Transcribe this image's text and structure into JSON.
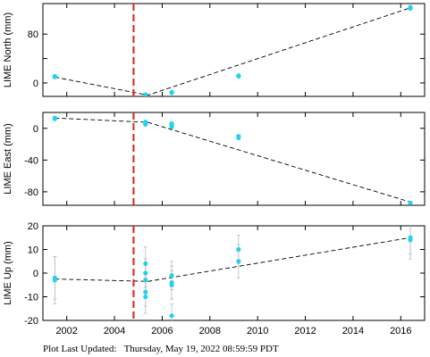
{
  "footer": {
    "label": "Plot Last Updated:",
    "timestamp": "Thursday, May 19, 2022 08:59:59 PDT"
  },
  "colors": {
    "points": "#22d3ee",
    "errorbars": "#bbbbbb",
    "trend": "#000000",
    "event_line": "#e0201a"
  },
  "chart_data": [
    {
      "type": "scatter",
      "ylabel": "LIME North (mm)",
      "xlim": [
        2001.0,
        2017.0
      ],
      "ylim": [
        -22,
        130
      ],
      "yticks": [
        0,
        40,
        80
      ],
      "ytick_labels": [
        "0",
        "",
        "80"
      ],
      "xticks": [
        2002,
        2004,
        2006,
        2008,
        2010,
        2012,
        2014,
        2016
      ],
      "xtick_labels": [
        "",
        "",
        "",
        "",
        "",
        "",
        "",
        ""
      ],
      "event_x": 2004.8,
      "trend": [
        [
          2001.5,
          9.5
        ],
        [
          2005.4,
          -20
        ],
        [
          2016.4,
          123
        ]
      ],
      "points": [
        {
          "x": 2001.5,
          "y": 10
        },
        {
          "x": 2001.5,
          "y": 11
        },
        {
          "x": 2005.3,
          "y": -19
        },
        {
          "x": 2005.3,
          "y": -20
        },
        {
          "x": 2006.4,
          "y": -16
        },
        {
          "x": 2006.4,
          "y": -15
        },
        {
          "x": 2009.2,
          "y": 11
        },
        {
          "x": 2009.2,
          "y": 12
        },
        {
          "x": 2016.4,
          "y": 122
        },
        {
          "x": 2016.4,
          "y": 124
        }
      ]
    },
    {
      "type": "scatter",
      "ylabel": "LIME East (mm)",
      "xlim": [
        2001.0,
        2017.0
      ],
      "ylim": [
        -97,
        20
      ],
      "yticks": [
        -80,
        -40,
        0
      ],
      "ytick_labels": [
        "-80",
        "-40",
        "0"
      ],
      "xticks": [
        2002,
        2004,
        2006,
        2008,
        2010,
        2012,
        2014,
        2016
      ],
      "xtick_labels": [
        "",
        "",
        "",
        "",
        "",
        "",
        "",
        ""
      ],
      "event_x": 2004.8,
      "trend": [
        [
          2001.5,
          13
        ],
        [
          2005.4,
          7.5
        ],
        [
          2016.4,
          -93
        ]
      ],
      "points": [
        {
          "x": 2001.5,
          "y": 12
        },
        {
          "x": 2001.5,
          "y": 13
        },
        {
          "x": 2005.3,
          "y": 7
        },
        {
          "x": 2005.3,
          "y": 8
        },
        {
          "x": 2005.3,
          "y": 5
        },
        {
          "x": 2006.4,
          "y": 6
        },
        {
          "x": 2006.4,
          "y": 4
        },
        {
          "x": 2006.4,
          "y": 2
        },
        {
          "x": 2009.2,
          "y": -10
        },
        {
          "x": 2009.2,
          "y": -12
        },
        {
          "x": 2016.4,
          "y": -94
        }
      ]
    },
    {
      "type": "scatter",
      "ylabel": "LIME Up (mm)",
      "xlim": [
        2001.0,
        2017.0
      ],
      "ylim": [
        -20,
        20
      ],
      "yticks": [
        -20,
        -10,
        0,
        10,
        20
      ],
      "ytick_labels": [
        "-20",
        "-10",
        "0",
        "10",
        "20"
      ],
      "xticks": [
        2002,
        2004,
        2006,
        2008,
        2010,
        2012,
        2014,
        2016
      ],
      "xtick_labels": [
        "2002",
        "2004",
        "2006",
        "2008",
        "2010",
        "2012",
        "2014",
        "2016"
      ],
      "event_x": 2004.8,
      "trend": [
        [
          2001.5,
          -2.5
        ],
        [
          2005.4,
          -3.5
        ],
        [
          2016.4,
          15
        ]
      ],
      "points": [
        {
          "x": 2001.5,
          "y": -2,
          "err": 9
        },
        {
          "x": 2001.5,
          "y": -3,
          "err": 10
        },
        {
          "x": 2005.3,
          "y": 4,
          "err": 7
        },
        {
          "x": 2005.3,
          "y": 0,
          "err": 6
        },
        {
          "x": 2005.3,
          "y": -3,
          "err": 7
        },
        {
          "x": 2005.3,
          "y": -8,
          "err": 6
        },
        {
          "x": 2005.3,
          "y": -10,
          "err": 7
        },
        {
          "x": 2006.4,
          "y": -1,
          "err": 6
        },
        {
          "x": 2006.4,
          "y": -4,
          "err": 7
        },
        {
          "x": 2006.4,
          "y": -5,
          "err": 6
        },
        {
          "x": 2006.4,
          "y": -18,
          "err": 5
        },
        {
          "x": 2009.2,
          "y": 10,
          "err": 6
        },
        {
          "x": 2009.2,
          "y": 5,
          "err": 7
        },
        {
          "x": 2016.4,
          "y": 15,
          "err": 7
        },
        {
          "x": 2016.4,
          "y": 14,
          "err": 8
        }
      ]
    }
  ]
}
